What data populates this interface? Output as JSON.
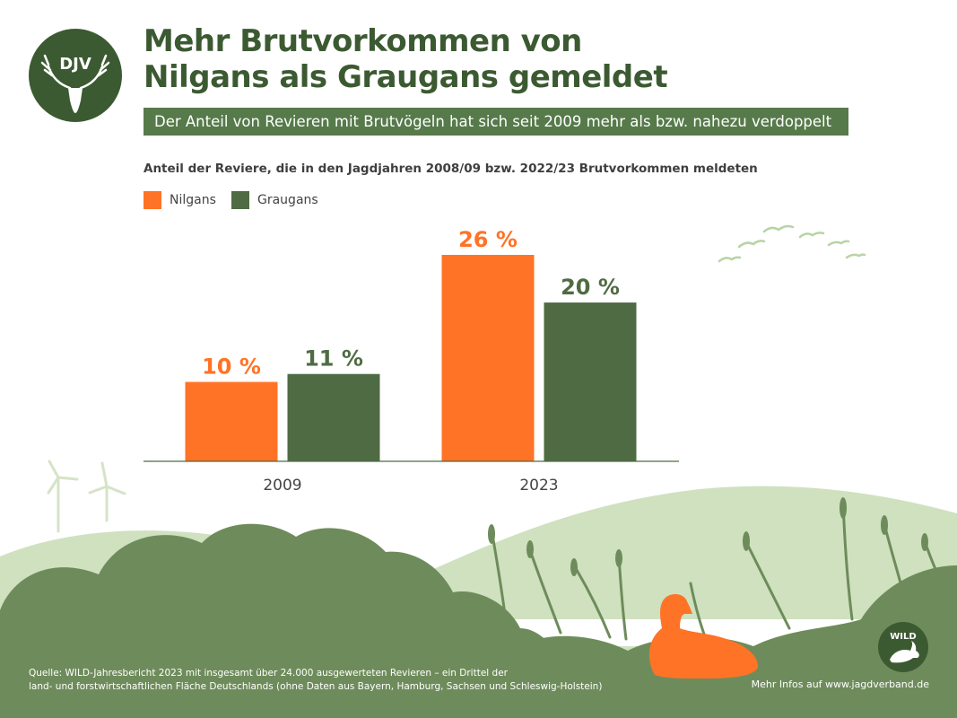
{
  "brand": {
    "logo_text": "DJV",
    "wild_logo_text": "WILD"
  },
  "colors": {
    "orange": "#ff7326",
    "green": "#4f6b43",
    "title": "#3c5a32",
    "banner": "#567a4a"
  },
  "header": {
    "title_line1": "Mehr Brutvorkommen von",
    "title_line2": "Nilgans als Graugans gemeldet",
    "subtitle": "Der Anteil von Revieren mit Brutvögeln hat sich seit 2009 mehr als bzw. nahezu verdoppelt"
  },
  "chart_data": {
    "type": "bar",
    "title": "Anteil der Reviere, die in den Jagdjahren 2008/09 bzw. 2022/23 Brutvorkommen meldeten",
    "categories": [
      "2009",
      "2023"
    ],
    "series": [
      {
        "name": "Nilgans",
        "values": [
          10,
          26
        ],
        "labels": [
          "10 %",
          "26 %"
        ],
        "color": "#ff7326"
      },
      {
        "name": "Graugans",
        "values": [
          11,
          20
        ],
        "labels": [
          "11 %",
          "20 %"
        ],
        "color": "#4f6b43"
      }
    ],
    "xlabel": "",
    "ylabel": "",
    "ylim": [
      0,
      26
    ],
    "grid": false,
    "legend": "top-left"
  },
  "footer": {
    "source_line1": "Quelle: WILD-Jahresbericht 2023 mit insgesamt über 24.000 ausgewerteten Revieren – ein Drittel der",
    "source_line2": "land- und forstwirtschaftlichen Fläche Deutschlands (ohne Daten aus Bayern, Hamburg, Sachsen und Schleswig-Holstein)",
    "more_info": "Mehr Infos auf www.jagdverband.de"
  }
}
